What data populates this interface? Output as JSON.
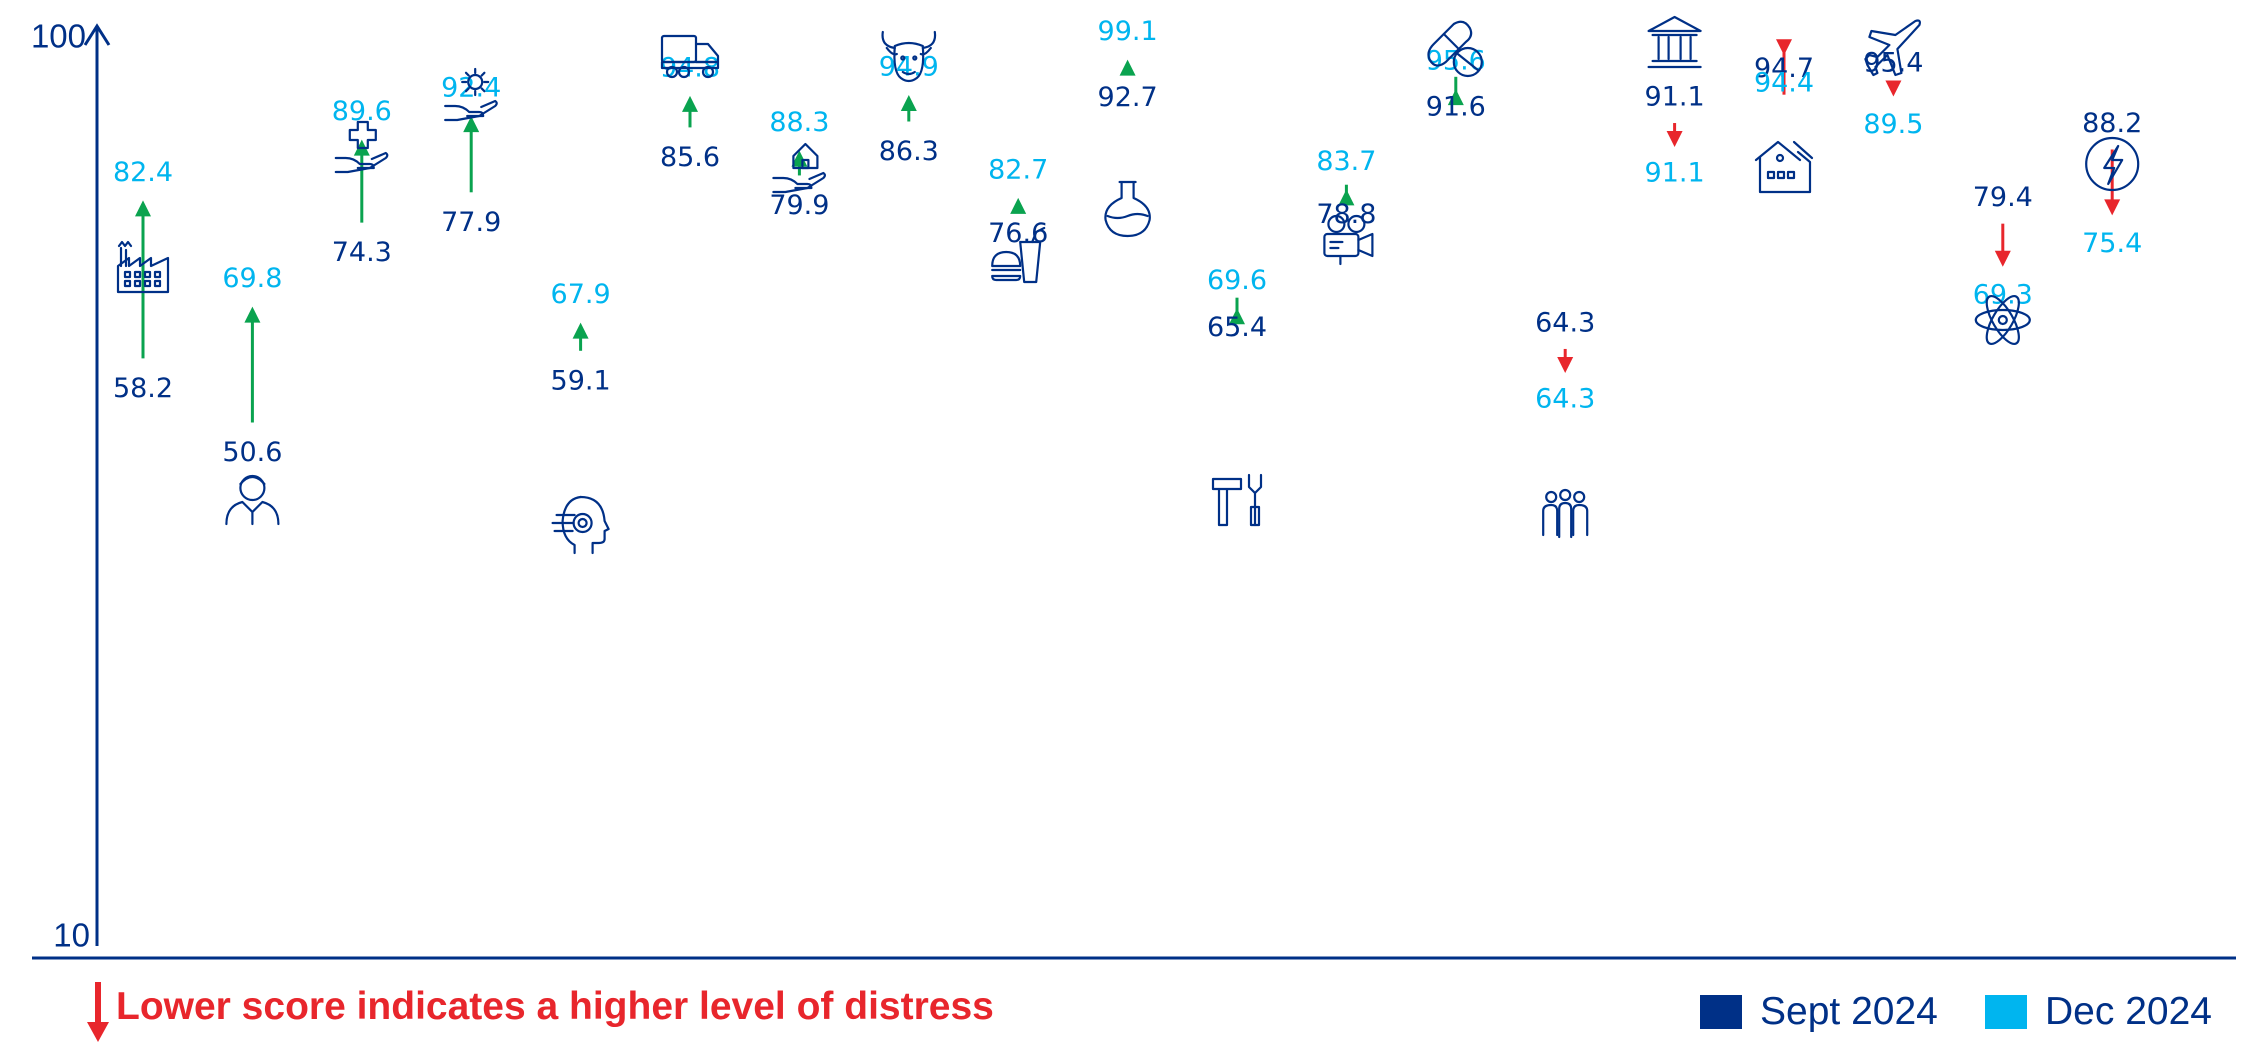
{
  "chart_data": {
    "type": "dumbbell",
    "y_axis": {
      "min": 10,
      "max": 100,
      "min_label": "10",
      "max_label": "100"
    },
    "note": "Lower score indicates a higher level of distress",
    "colors": {
      "sept": "#003087",
      "dec": "#00b5ef",
      "up": "#0aa34f",
      "down": "#e8262c",
      "axis": "#003087"
    },
    "series": [
      {
        "name": "Sept 2024"
      },
      {
        "name": "Dec 2024"
      }
    ],
    "points": [
      {
        "icon": "factory-icon",
        "sept": 58.2,
        "dec": 82.4,
        "sept_label": "58.2",
        "dec_label": "82.4"
      },
      {
        "icon": "person-icon",
        "sept": 50.6,
        "dec": 69.8,
        "sept_label": "50.6",
        "dec_label": "69.8"
      },
      {
        "icon": "healthcare-hand-icon",
        "sept": 74.3,
        "dec": 89.6,
        "sept_label": "74.3",
        "dec_label": "89.6"
      },
      {
        "icon": "gear-hand-icon",
        "sept": 77.9,
        "dec": 92.4,
        "sept_label": "77.9",
        "dec_label": "92.4"
      },
      {
        "icon": "ai-head-icon",
        "sept": 59.1,
        "dec": 67.9,
        "sept_label": "59.1",
        "dec_label": "67.9"
      },
      {
        "icon": "truck-icon",
        "sept": 85.6,
        "dec": 94.8,
        "sept_label": "85.6",
        "dec_label": "94.8"
      },
      {
        "icon": "house-hand-icon",
        "sept": 79.9,
        "dec": 88.3,
        "sept_label": "79.9",
        "dec_label": "88.3"
      },
      {
        "icon": "bull-icon",
        "sept": 86.3,
        "dec": 94.9,
        "sept_label": "86.3",
        "dec_label": "94.9"
      },
      {
        "icon": "fast-food-icon",
        "sept": 76.6,
        "dec": 82.7,
        "sept_label": "76.6",
        "dec_label": "82.7"
      },
      {
        "icon": "flask-icon",
        "sept": 92.7,
        "dec": 99.1,
        "sept_label": "92.7",
        "dec_label": "99.1"
      },
      {
        "icon": "tools-icon",
        "sept": 65.4,
        "dec": 69.6,
        "sept_label": "65.4",
        "dec_label": "69.6"
      },
      {
        "icon": "video-camera-icon",
        "sept": 78.8,
        "dec": 83.7,
        "sept_label": "78.8",
        "dec_label": "83.7"
      },
      {
        "icon": "pills-icon",
        "sept": 91.6,
        "dec": 95.6,
        "sept_label": "91.6",
        "dec_label": "95.6"
      },
      {
        "icon": "people-group-icon",
        "sept": 64.3,
        "dec": 64.3,
        "sept_label": "64.3",
        "dec_label": "64.3"
      },
      {
        "icon": "bank-icon",
        "sept": 91.1,
        "dec": 91.1,
        "sept_label": "91.1",
        "dec_label": "91.1"
      },
      {
        "icon": "houses-icon",
        "sept": 94.7,
        "dec": 94.4,
        "sept_label": "94.7",
        "dec_label": "94.4"
      },
      {
        "icon": "airplane-icon",
        "sept": 95.4,
        "dec": 89.5,
        "sept_label": "95.4",
        "dec_label": "89.5"
      },
      {
        "icon": "atom-icon",
        "sept": 79.4,
        "dec": 69.3,
        "sept_label": "79.4",
        "dec_label": "69.3"
      },
      {
        "icon": "lightning-icon",
        "sept": 88.2,
        "dec": 75.4,
        "sept_label": "88.2",
        "dec_label": "75.4"
      }
    ]
  }
}
